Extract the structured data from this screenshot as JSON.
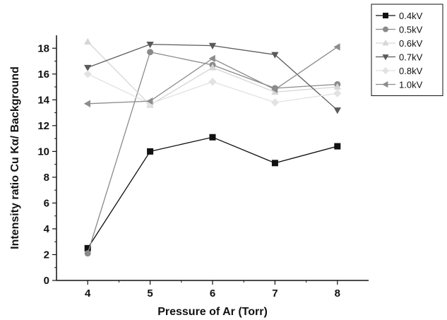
{
  "chart_data": {
    "type": "line",
    "xlabel": "Pressure of Ar (Torr)",
    "ylabel": "Intensity ratio Cu Kα/ Background",
    "x": [
      4,
      5,
      6,
      7,
      8
    ],
    "xlim": [
      3.5,
      8.5
    ],
    "ylim": [
      0,
      19
    ],
    "xticks": [
      4,
      5,
      6,
      7,
      8
    ],
    "yticks": [
      0,
      2,
      4,
      6,
      8,
      10,
      12,
      14,
      16,
      18
    ],
    "grid": false,
    "legend_position": "top-right",
    "series": [
      {
        "name": "0.4kV",
        "marker": "square",
        "color": "#111111",
        "values": [
          2.5,
          10.0,
          11.1,
          9.1,
          10.4
        ]
      },
      {
        "name": "0.5kV",
        "marker": "circle",
        "color": "#8a8a8a",
        "values": [
          2.1,
          17.7,
          16.7,
          14.9,
          15.2
        ]
      },
      {
        "name": "0.6kV",
        "marker": "triangle-up",
        "color": "#d6d6d6",
        "values": [
          18.5,
          13.6,
          16.5,
          14.6,
          15.0
        ]
      },
      {
        "name": "0.7kV",
        "marker": "triangle-down",
        "color": "#5a5a5a",
        "values": [
          16.5,
          18.3,
          18.2,
          17.5,
          13.2
        ]
      },
      {
        "name": "0.8kV",
        "marker": "diamond",
        "color": "#e2e2e2",
        "values": [
          16.0,
          13.7,
          15.4,
          13.8,
          14.5
        ]
      },
      {
        "name": "1.0kV",
        "marker": "triangle-left",
        "color": "#8c8c8c",
        "values": [
          13.7,
          13.9,
          17.2,
          14.8,
          18.1
        ]
      }
    ]
  }
}
